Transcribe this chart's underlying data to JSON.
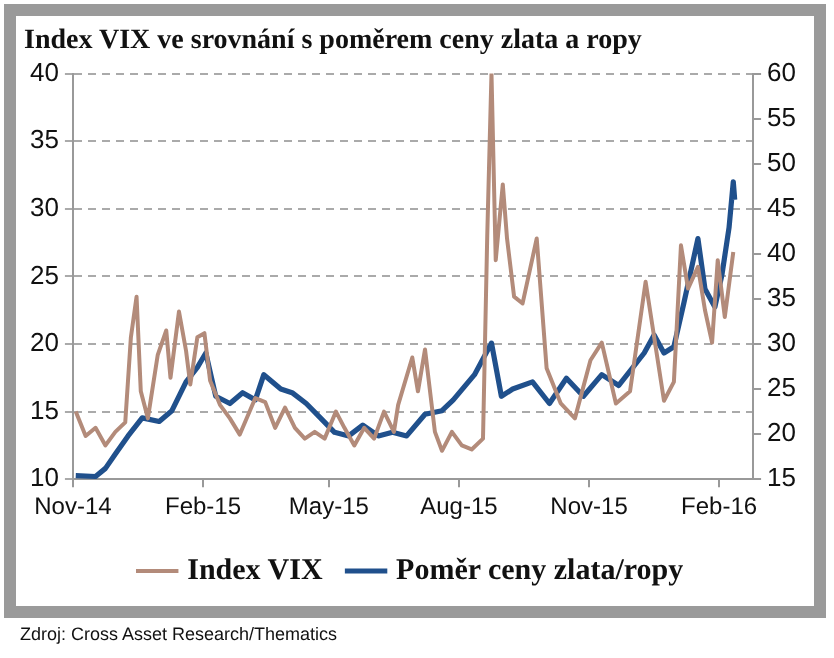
{
  "chart_data": {
    "type": "line",
    "title": "Index VIX ve srovnání s poměrem ceny zlata a ropy",
    "xlim": [
      "2014-11-01",
      "2016-02-25"
    ],
    "xticks": [
      {
        "value": "2014-11-01",
        "label": "Nov-14"
      },
      {
        "value": "2015-02-01",
        "label": "Feb-15"
      },
      {
        "value": "2015-05-01",
        "label": "May-15"
      },
      {
        "value": "2015-08-01",
        "label": "Aug-15"
      },
      {
        "value": "2015-11-01",
        "label": "Nov-15"
      },
      {
        "value": "2016-02-01",
        "label": "Feb-16"
      }
    ],
    "ylim": [
      10,
      40
    ],
    "yticks": [
      10,
      15,
      20,
      25,
      30,
      35,
      40
    ],
    "y2lim": [
      15,
      60
    ],
    "y2ticks": [
      15,
      20,
      25,
      30,
      35,
      40,
      45,
      50,
      55,
      60
    ],
    "grid": "y",
    "legend": "bottom",
    "marker": "none",
    "line_style": "solid",
    "annotations": [
      "Zdroj: Cross Asset Research/Thematics"
    ],
    "series": [
      {
        "name": "Index VIX",
        "color": "#b38b7a",
        "x": [
          "2014-11-03",
          "2014-11-10",
          "2014-11-17",
          "2014-11-24",
          "2014-12-01",
          "2014-12-08",
          "2014-12-12",
          "2014-12-16",
          "2014-12-19",
          "2014-12-24",
          "2014-12-31",
          "2015-01-06",
          "2015-01-09",
          "2015-01-15",
          "2015-01-20",
          "2015-01-23",
          "2015-01-28",
          "2015-02-02",
          "2015-02-06",
          "2015-02-13",
          "2015-02-20",
          "2015-02-27",
          "2015-03-10",
          "2015-03-17",
          "2015-03-24",
          "2015-03-31",
          "2015-04-07",
          "2015-04-14",
          "2015-04-21",
          "2015-04-28",
          "2015-05-06",
          "2015-05-12",
          "2015-05-19",
          "2015-05-26",
          "2015-06-02",
          "2015-06-09",
          "2015-06-16",
          "2015-06-19",
          "2015-06-29",
          "2015-07-03",
          "2015-07-08",
          "2015-07-15",
          "2015-07-20",
          "2015-07-27",
          "2015-08-03",
          "2015-08-10",
          "2015-08-18",
          "2015-08-21",
          "2015-08-24",
          "2015-08-27",
          "2015-09-01",
          "2015-09-04",
          "2015-09-09",
          "2015-09-15",
          "2015-09-25",
          "2015-10-02",
          "2015-10-12",
          "2015-10-22",
          "2015-11-02",
          "2015-11-10",
          "2015-11-20",
          "2015-11-30",
          "2015-12-11",
          "2015-12-24",
          "2015-12-31",
          "2016-01-05",
          "2016-01-10",
          "2016-01-17",
          "2016-01-22",
          "2016-01-27",
          "2016-01-31",
          "2016-02-05",
          "2016-02-11"
        ],
        "values": [
          15.0,
          13.2,
          13.8,
          12.5,
          13.5,
          14.2,
          20.5,
          23.5,
          16.5,
          14.5,
          19.2,
          21.0,
          17.5,
          22.4,
          19.5,
          17.0,
          20.5,
          20.8,
          17.3,
          15.5,
          14.5,
          13.3,
          16.0,
          15.7,
          13.8,
          15.3,
          13.8,
          13.0,
          13.5,
          13.0,
          15.0,
          13.8,
          12.5,
          13.8,
          13.0,
          15.0,
          13.5,
          15.5,
          19.0,
          16.5,
          19.6,
          13.5,
          12.1,
          13.5,
          12.5,
          12.2,
          13.0,
          28.0,
          40.0,
          26.2,
          31.8,
          27.8,
          23.5,
          23.0,
          27.8,
          18.2,
          15.6,
          14.5,
          18.8,
          20.1,
          15.6,
          16.5,
          24.6,
          15.8,
          17.2,
          27.3,
          24.1,
          25.7,
          22.5,
          20.1,
          26.2,
          22.0,
          26.8
        ]
      },
      {
        "name": "Poměr ceny zlata/ropy",
        "color": "#20508c",
        "axis": "y2",
        "x": [
          "2014-11-03",
          "2014-11-17",
          "2014-11-24",
          "2014-12-01",
          "2014-12-10",
          "2014-12-20",
          "2015-01-01",
          "2015-01-10",
          "2015-01-20",
          "2015-01-28",
          "2015-02-03",
          "2015-02-10",
          "2015-02-20",
          "2015-03-01",
          "2015-03-10",
          "2015-03-16",
          "2015-03-28",
          "2015-04-05",
          "2015-04-15",
          "2015-04-25",
          "2015-05-05",
          "2015-05-15",
          "2015-05-25",
          "2015-06-05",
          "2015-06-15",
          "2015-06-25",
          "2015-07-08",
          "2015-07-20",
          "2015-07-28",
          "2015-08-12",
          "2015-08-24",
          "2015-08-31",
          "2015-09-08",
          "2015-09-22",
          "2015-10-04",
          "2015-10-16",
          "2015-10-28",
          "2015-11-10",
          "2015-11-22",
          "2015-12-10",
          "2015-12-17",
          "2015-12-24",
          "2015-12-31",
          "2016-01-07",
          "2016-01-17",
          "2016-01-22",
          "2016-01-29",
          "2016-02-03",
          "2016-02-08",
          "2016-02-11",
          "2016-02-12"
        ],
        "values": [
          15.4,
          15.3,
          16.2,
          17.8,
          19.8,
          21.8,
          21.4,
          22.6,
          25.8,
          27.4,
          29.0,
          24.2,
          23.4,
          24.6,
          23.8,
          26.6,
          25.0,
          24.6,
          23.4,
          21.8,
          20.2,
          19.8,
          21.0,
          19.8,
          20.2,
          19.8,
          22.2,
          22.6,
          23.8,
          26.6,
          30.1,
          24.2,
          25.0,
          25.8,
          23.4,
          26.2,
          24.2,
          26.6,
          25.4,
          29.0,
          31.0,
          29.0,
          29.7,
          34.5,
          41.7,
          36.1,
          34.1,
          37.7,
          42.9,
          48.0,
          46.0
        ]
      }
    ]
  }
}
